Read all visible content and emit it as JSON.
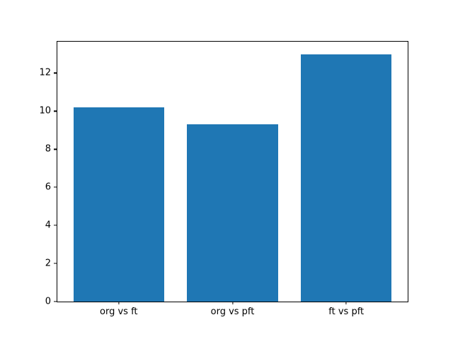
{
  "chart_data": {
    "type": "bar",
    "title": "",
    "xlabel": "",
    "ylabel": "",
    "categories": [
      "org vs ft",
      "org vs pft",
      "ft vs pft"
    ],
    "values": [
      10.2,
      9.3,
      13.0
    ],
    "yticks": [
      0,
      2,
      4,
      6,
      8,
      10,
      12
    ],
    "ylim": [
      0,
      13.65
    ],
    "bar_color": "#1f77b4",
    "spine_color": "#000000",
    "background_color": "#ffffff",
    "grid": false,
    "legend": false,
    "bar_width_data_units": 0.8,
    "x_margin_fraction": 0.05
  }
}
